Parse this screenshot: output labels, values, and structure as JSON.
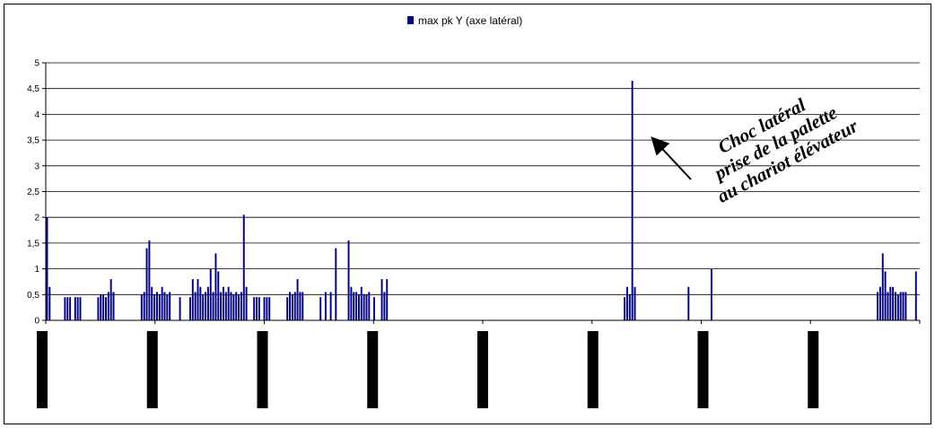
{
  "chart_data": {
    "type": "bar",
    "ylim": [
      0,
      5
    ],
    "yticks": [
      "0",
      "0,5",
      "1",
      "1,5",
      "2",
      "2,5",
      "3",
      "3,5",
      "4",
      "4,5",
      "5"
    ],
    "grid": true,
    "legend_position": "top",
    "series": [
      {
        "name": "max pk Y (axe latéral)",
        "color": "#000080",
        "points": [
          {
            "x": 0,
            "y": 2.0
          },
          {
            "x": 1,
            "y": 0.65
          },
          {
            "x": 7,
            "y": 0.45
          },
          {
            "x": 8,
            "y": 0.45
          },
          {
            "x": 9,
            "y": 0.45
          },
          {
            "x": 11,
            "y": 0.45
          },
          {
            "x": 12,
            "y": 0.45
          },
          {
            "x": 13,
            "y": 0.45
          },
          {
            "x": 20,
            "y": 0.45
          },
          {
            "x": 21,
            "y": 0.5
          },
          {
            "x": 22,
            "y": 0.5
          },
          {
            "x": 23,
            "y": 0.45
          },
          {
            "x": 24,
            "y": 0.55
          },
          {
            "x": 25,
            "y": 0.8
          },
          {
            "x": 26,
            "y": 0.55
          },
          {
            "x": 37,
            "y": 0.5
          },
          {
            "x": 38,
            "y": 0.55
          },
          {
            "x": 39,
            "y": 1.4
          },
          {
            "x": 40,
            "y": 1.55
          },
          {
            "x": 41,
            "y": 0.65
          },
          {
            "x": 42,
            "y": 0.5
          },
          {
            "x": 43,
            "y": 0.55
          },
          {
            "x": 44,
            "y": 0.5
          },
          {
            "x": 45,
            "y": 0.65
          },
          {
            "x": 46,
            "y": 0.55
          },
          {
            "x": 47,
            "y": 0.5
          },
          {
            "x": 48,
            "y": 0.55
          },
          {
            "x": 52,
            "y": 0.45
          },
          {
            "x": 56,
            "y": 0.45
          },
          {
            "x": 57,
            "y": 0.8
          },
          {
            "x": 58,
            "y": 0.55
          },
          {
            "x": 59,
            "y": 0.8
          },
          {
            "x": 60,
            "y": 0.65
          },
          {
            "x": 61,
            "y": 0.5
          },
          {
            "x": 62,
            "y": 0.55
          },
          {
            "x": 63,
            "y": 0.65
          },
          {
            "x": 64,
            "y": 1.0
          },
          {
            "x": 65,
            "y": 0.55
          },
          {
            "x": 66,
            "y": 1.3
          },
          {
            "x": 67,
            "y": 0.95
          },
          {
            "x": 68,
            "y": 0.55
          },
          {
            "x": 69,
            "y": 0.65
          },
          {
            "x": 70,
            "y": 0.55
          },
          {
            "x": 71,
            "y": 0.65
          },
          {
            "x": 72,
            "y": 0.55
          },
          {
            "x": 73,
            "y": 0.5
          },
          {
            "x": 74,
            "y": 0.55
          },
          {
            "x": 75,
            "y": 0.5
          },
          {
            "x": 76,
            "y": 0.55
          },
          {
            "x": 77,
            "y": 2.05
          },
          {
            "x": 78,
            "y": 0.65
          },
          {
            "x": 81,
            "y": 0.45
          },
          {
            "x": 82,
            "y": 0.45
          },
          {
            "x": 83,
            "y": 0.45
          },
          {
            "x": 85,
            "y": 0.45
          },
          {
            "x": 86,
            "y": 0.45
          },
          {
            "x": 87,
            "y": 0.45
          },
          {
            "x": 94,
            "y": 0.45
          },
          {
            "x": 95,
            "y": 0.55
          },
          {
            "x": 96,
            "y": 0.5
          },
          {
            "x": 97,
            "y": 0.55
          },
          {
            "x": 98,
            "y": 0.8
          },
          {
            "x": 99,
            "y": 0.55
          },
          {
            "x": 100,
            "y": 0.55
          },
          {
            "x": 107,
            "y": 0.45
          },
          {
            "x": 109,
            "y": 0.55
          },
          {
            "x": 111,
            "y": 0.55
          },
          {
            "x": 113,
            "y": 1.4
          },
          {
            "x": 118,
            "y": 1.55
          },
          {
            "x": 119,
            "y": 0.65
          },
          {
            "x": 120,
            "y": 0.55
          },
          {
            "x": 121,
            "y": 0.55
          },
          {
            "x": 122,
            "y": 0.5
          },
          {
            "x": 123,
            "y": 0.65
          },
          {
            "x": 124,
            "y": 0.5
          },
          {
            "x": 125,
            "y": 0.5
          },
          {
            "x": 126,
            "y": 0.55
          },
          {
            "x": 128,
            "y": 0.45
          },
          {
            "x": 131,
            "y": 0.8
          },
          {
            "x": 132,
            "y": 0.55
          },
          {
            "x": 133,
            "y": 0.8
          },
          {
            "x": 226,
            "y": 0.45
          },
          {
            "x": 227,
            "y": 0.65
          },
          {
            "x": 228,
            "y": 0.5
          },
          {
            "x": 229,
            "y": 4.65
          },
          {
            "x": 230,
            "y": 0.65
          },
          {
            "x": 251,
            "y": 0.65
          },
          {
            "x": 260,
            "y": 1.0
          },
          {
            "x": 325,
            "y": 0.55
          },
          {
            "x": 326,
            "y": 0.65
          },
          {
            "x": 327,
            "y": 1.3
          },
          {
            "x": 328,
            "y": 0.95
          },
          {
            "x": 329,
            "y": 0.55
          },
          {
            "x": 330,
            "y": 0.65
          },
          {
            "x": 331,
            "y": 0.65
          },
          {
            "x": 332,
            "y": 0.55
          },
          {
            "x": 333,
            "y": 0.5
          },
          {
            "x": 334,
            "y": 0.55
          },
          {
            "x": 335,
            "y": 0.55
          },
          {
            "x": 336,
            "y": 0.55
          },
          {
            "x": 340,
            "y": 0.95
          }
        ]
      }
    ],
    "x_count": 342,
    "annotation": {
      "lines": [
        "Choc latéral",
        "prise de la palette",
        "au chariot élévateur"
      ],
      "points_to_x": 229,
      "points_to_y": 3.6
    },
    "strip_marks_count": 8
  }
}
